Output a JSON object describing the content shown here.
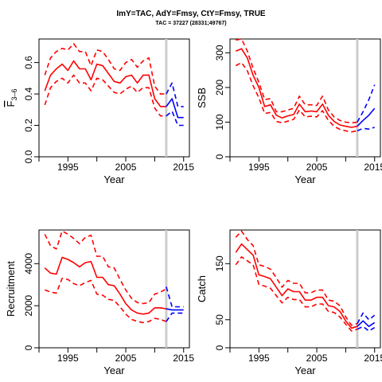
{
  "header": {
    "title": "ImY=TAC, AdY=Fmsy, CtY=Fmsy, TRUE",
    "subtitle": "TAC = 37227 (28331;49767)"
  },
  "colors": {
    "historical": "#ff0000",
    "projection": "#0000ff",
    "reference_line": "#cccccc"
  },
  "chart_data": [
    {
      "type": "line",
      "xlabel": "Year",
      "ylabel": "F̅ 3–6",
      "ylabel_main": "F",
      "ylabel_sub": "3–6",
      "xlim": [
        1990,
        2016
      ],
      "ylim": [
        0,
        0.75
      ],
      "xticks": [
        1995,
        2005,
        2015
      ],
      "yticks": [
        0.0,
        0.2,
        0.4,
        0.6
      ],
      "ytick_labels": [
        "0.0",
        "0.2",
        "0.4",
        "0.6"
      ],
      "vline": 2012,
      "series": [
        {
          "role": "median",
          "style": "solid",
          "color": "#ff0000",
          "x": [
            1991,
            1992,
            1993,
            1994,
            1995,
            1996,
            1997,
            1998,
            1999,
            2000,
            2001,
            2002,
            2003,
            2004,
            2005,
            2006,
            2007,
            2008,
            2009,
            2010,
            2011,
            2012
          ],
          "y": [
            0.42,
            0.52,
            0.56,
            0.59,
            0.55,
            0.61,
            0.56,
            0.56,
            0.49,
            0.59,
            0.58,
            0.53,
            0.48,
            0.47,
            0.51,
            0.52,
            0.47,
            0.52,
            0.52,
            0.37,
            0.32,
            0.32
          ]
        },
        {
          "role": "upper",
          "style": "dashed",
          "color": "#ff0000",
          "x": [
            1991,
            1992,
            1993,
            1994,
            1995,
            1996,
            1997,
            1998,
            1999,
            2000,
            2001,
            2002,
            2003,
            2004,
            2005,
            2006,
            2007,
            2008,
            2009,
            2010,
            2011,
            2012
          ],
          "y": [
            0.52,
            0.63,
            0.67,
            0.69,
            0.68,
            0.72,
            0.67,
            0.67,
            0.58,
            0.68,
            0.67,
            0.62,
            0.56,
            0.55,
            0.6,
            0.62,
            0.57,
            0.61,
            0.63,
            0.45,
            0.4,
            0.4
          ]
        },
        {
          "role": "lower",
          "style": "dashed",
          "color": "#ff0000",
          "x": [
            1991,
            1992,
            1993,
            1994,
            1995,
            1996,
            1997,
            1998,
            1999,
            2000,
            2001,
            2002,
            2003,
            2004,
            2005,
            2006,
            2007,
            2008,
            2009,
            2010,
            2011,
            2012
          ],
          "y": [
            0.33,
            0.44,
            0.48,
            0.5,
            0.47,
            0.52,
            0.47,
            0.47,
            0.42,
            0.5,
            0.49,
            0.45,
            0.41,
            0.4,
            0.43,
            0.45,
            0.41,
            0.44,
            0.44,
            0.31,
            0.26,
            0.26
          ]
        },
        {
          "role": "median",
          "style": "solid",
          "color": "#0000ff",
          "x": [
            2012,
            2013,
            2014,
            2015
          ],
          "y": [
            0.32,
            0.37,
            0.25,
            0.25
          ]
        },
        {
          "role": "upper",
          "style": "dashed",
          "color": "#0000ff",
          "x": [
            2012,
            2013,
            2014,
            2015
          ],
          "y": [
            0.4,
            0.47,
            0.32,
            0.32
          ]
        },
        {
          "role": "lower",
          "style": "dashed",
          "color": "#0000ff",
          "x": [
            2012,
            2013,
            2014,
            2015
          ],
          "y": [
            0.26,
            0.29,
            0.2,
            0.2
          ]
        }
      ]
    },
    {
      "type": "line",
      "xlabel": "Year",
      "ylabel": "SSB",
      "xlim": [
        1990,
        2016
      ],
      "ylim": [
        0,
        340
      ],
      "xticks": [
        1995,
        2005,
        2015
      ],
      "yticks": [
        0,
        100,
        200,
        300
      ],
      "ytick_labels": [
        "0",
        "100",
        "200",
        "300"
      ],
      "vline": 2012,
      "series": [
        {
          "role": "median",
          "style": "solid",
          "color": "#ff0000",
          "x": [
            1991,
            1992,
            1993,
            1994,
            1995,
            1996,
            1997,
            1998,
            1999,
            2000,
            2001,
            2002,
            2003,
            2004,
            2005,
            2006,
            2007,
            2008,
            2009,
            2010,
            2011,
            2012
          ],
          "y": [
            305,
            312,
            285,
            235,
            200,
            145,
            150,
            120,
            112,
            118,
            122,
            152,
            130,
            132,
            130,
            152,
            120,
            102,
            92,
            88,
            85,
            88
          ]
        },
        {
          "role": "upper",
          "style": "dashed",
          "color": "#ff0000",
          "x": [
            1991,
            1992,
            1993,
            1994,
            1995,
            1996,
            1997,
            1998,
            1999,
            2000,
            2001,
            2002,
            2003,
            2004,
            2005,
            2006,
            2007,
            2008,
            2009,
            2010,
            2011,
            2012
          ],
          "y": [
            337,
            340,
            305,
            255,
            215,
            165,
            168,
            130,
            130,
            135,
            140,
            175,
            150,
            150,
            148,
            175,
            135,
            115,
            105,
            100,
            98,
            100
          ]
        },
        {
          "role": "lower",
          "style": "dashed",
          "color": "#ff0000",
          "x": [
            1991,
            1992,
            1993,
            1994,
            1995,
            1996,
            1997,
            1998,
            1999,
            2000,
            2001,
            2002,
            2003,
            2004,
            2005,
            2006,
            2007,
            2008,
            2009,
            2010,
            2011,
            2012
          ],
          "y": [
            263,
            272,
            248,
            205,
            170,
            125,
            128,
            102,
            98,
            103,
            108,
            135,
            115,
            117,
            115,
            133,
            105,
            88,
            79,
            75,
            72,
            75
          ]
        },
        {
          "role": "median",
          "style": "solid",
          "color": "#0000ff",
          "x": [
            2012,
            2013,
            2014,
            2015
          ],
          "y": [
            88,
            105,
            120,
            140
          ]
        },
        {
          "role": "upper",
          "style": "dashed",
          "color": "#0000ff",
          "x": [
            2012,
            2013,
            2014,
            2015
          ],
          "y": [
            100,
            130,
            165,
            208
          ]
        },
        {
          "role": "lower",
          "style": "dashed",
          "color": "#0000ff",
          "x": [
            2012,
            2013,
            2014,
            2015
          ],
          "y": [
            75,
            82,
            80,
            85
          ]
        }
      ]
    },
    {
      "type": "line",
      "xlabel": "Year",
      "ylabel": "Recruitment",
      "xlim": [
        1990,
        2016
      ],
      "ylim": [
        0,
        5600
      ],
      "xticks": [
        1995,
        2005,
        2015
      ],
      "yticks": [
        0,
        2000,
        4000
      ],
      "ytick_labels": [
        "0",
        "2000",
        "4000"
      ],
      "vline": 2012,
      "series": [
        {
          "role": "median",
          "style": "solid",
          "color": "#ff0000",
          "x": [
            1991,
            1992,
            1993,
            1994,
            1995,
            1996,
            1997,
            1998,
            1999,
            2000,
            2001,
            2002,
            2003,
            2004,
            2005,
            2006,
            2007,
            2008,
            2009,
            2010,
            2011,
            2012
          ],
          "y": [
            3800,
            3550,
            3500,
            4300,
            4200,
            4050,
            3850,
            4050,
            4100,
            3350,
            3350,
            3000,
            2950,
            2550,
            2100,
            1800,
            1650,
            1600,
            1650,
            1900,
            1900,
            1850
          ]
        },
        {
          "role": "upper",
          "style": "dashed",
          "color": "#ff0000",
          "x": [
            1991,
            1992,
            1993,
            1994,
            1995,
            1996,
            1997,
            1998,
            1999,
            2000,
            2001,
            2002,
            2003,
            2004,
            2005,
            2006,
            2007,
            2008,
            2009,
            2010,
            2011,
            2012
          ],
          "y": [
            5400,
            4850,
            4700,
            5550,
            5400,
            5200,
            4950,
            5250,
            5350,
            4350,
            4350,
            3850,
            3800,
            3250,
            2750,
            2350,
            2150,
            2100,
            2150,
            2550,
            2650,
            2800
          ]
        },
        {
          "role": "lower",
          "style": "dashed",
          "color": "#ff0000",
          "x": [
            1991,
            1992,
            1993,
            1994,
            1995,
            1996,
            1997,
            1998,
            1999,
            2000,
            2001,
            2002,
            2003,
            2004,
            2005,
            2006,
            2007,
            2008,
            2009,
            2010,
            2011,
            2012
          ],
          "y": [
            2750,
            2650,
            2600,
            3300,
            3250,
            3050,
            2950,
            3100,
            3200,
            2550,
            2500,
            2300,
            2250,
            1950,
            1600,
            1350,
            1250,
            1200,
            1250,
            1400,
            1350,
            1250
          ]
        },
        {
          "role": "median",
          "style": "solid",
          "color": "#0000ff",
          "x": [
            2012,
            2013,
            2014,
            2015
          ],
          "y": [
            1850,
            1800,
            1800,
            1800
          ]
        },
        {
          "role": "upper",
          "style": "dashed",
          "color": "#0000ff",
          "x": [
            2012,
            2013,
            2014,
            2015
          ],
          "y": [
            2900,
            1950,
            1950,
            1950
          ]
        },
        {
          "role": "lower",
          "style": "dashed",
          "color": "#0000ff",
          "x": [
            2012,
            2013,
            2014,
            2015
          ],
          "y": [
            1250,
            1650,
            1650,
            1650
          ]
        }
      ]
    },
    {
      "type": "line",
      "xlabel": "Year",
      "ylabel": "Catch",
      "xlim": [
        1990,
        2016
      ],
      "ylim": [
        0,
        210
      ],
      "xticks": [
        1995,
        2005,
        2015
      ],
      "yticks": [
        0,
        50,
        150
      ],
      "ytick_labels": [
        "0",
        "50",
        "150"
      ],
      "vline": 2012,
      "series": [
        {
          "role": "median",
          "style": "solid",
          "color": "#ff0000",
          "x": [
            1991,
            1992,
            1993,
            1994,
            1995,
            1996,
            1997,
            1998,
            1999,
            2000,
            2001,
            2002,
            2003,
            2004,
            2005,
            2006,
            2007,
            2008,
            2009,
            2010,
            2011,
            2012
          ],
          "y": [
            170,
            185,
            175,
            165,
            130,
            127,
            123,
            108,
            93,
            105,
            100,
            100,
            85,
            85,
            90,
            90,
            75,
            73,
            65,
            48,
            35,
            38
          ]
        },
        {
          "role": "upper",
          "style": "dashed",
          "color": "#ff0000",
          "x": [
            1991,
            1992,
            1993,
            1994,
            1995,
            1996,
            1997,
            1998,
            1999,
            2000,
            2001,
            2002,
            2003,
            2004,
            2005,
            2006,
            2007,
            2008,
            2009,
            2010,
            2011,
            2012
          ],
          "y": [
            197,
            208,
            193,
            182,
            148,
            145,
            140,
            125,
            108,
            120,
            115,
            115,
            98,
            98,
            103,
            103,
            85,
            83,
            75,
            55,
            40,
            43
          ]
        },
        {
          "role": "lower",
          "style": "dashed",
          "color": "#ff0000",
          "x": [
            1991,
            1992,
            1993,
            1994,
            1995,
            1996,
            1997,
            1998,
            1999,
            2000,
            2001,
            2002,
            2003,
            2004,
            2005,
            2006,
            2007,
            2008,
            2009,
            2010,
            2011,
            2012
          ],
          "y": [
            148,
            162,
            155,
            148,
            113,
            110,
            106,
            93,
            80,
            90,
            86,
            86,
            73,
            73,
            78,
            78,
            65,
            63,
            55,
            42,
            30,
            33
          ]
        },
        {
          "role": "median",
          "style": "solid",
          "color": "#0000ff",
          "x": [
            2012,
            2013,
            2014,
            2015
          ],
          "y": [
            38,
            48,
            38,
            45
          ]
        },
        {
          "role": "upper",
          "style": "dashed",
          "color": "#0000ff",
          "x": [
            2012,
            2013,
            2014,
            2015
          ],
          "y": [
            43,
            62,
            50,
            58
          ]
        },
        {
          "role": "lower",
          "style": "dashed",
          "color": "#0000ff",
          "x": [
            2012,
            2013,
            2014,
            2015
          ],
          "y": [
            33,
            38,
            30,
            36
          ]
        }
      ]
    }
  ]
}
